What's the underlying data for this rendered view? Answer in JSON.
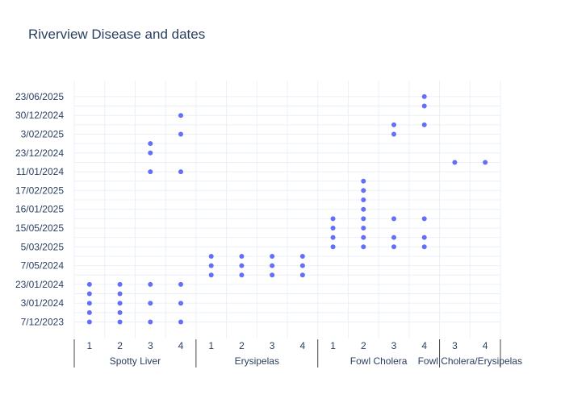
{
  "chart_data": {
    "type": "scatter",
    "title": "Riverview Disease and dates",
    "xlabel": "",
    "ylabel": "",
    "grid": true,
    "marker_color": "#636efa",
    "y_categories": [
      "7/12/2023",
      "3/01/2024",
      "23/01/2024",
      "7/05/2024",
      "5/03/2025",
      "15/05/2025",
      "16/01/2025",
      "17/02/2025",
      "11/01/2024",
      "23/12/2024",
      "3/02/2025",
      "30/12/2024",
      "23/06/2025"
    ],
    "groups": [
      {
        "name": "Spotty Liver",
        "subcategories": [
          "1",
          "2",
          "3",
          "4"
        ]
      },
      {
        "name": "Erysipelas",
        "subcategories": [
          "1",
          "2",
          "3",
          "4"
        ]
      },
      {
        "name": "Fowl Cholera",
        "subcategories": [
          "1",
          "2",
          "3",
          "4"
        ]
      },
      {
        "name": "Fowl Cholera/Erysipelas",
        "subcategories": [
          "3",
          "4"
        ]
      }
    ],
    "points": [
      {
        "group": "Spotty Liver",
        "sub": "1",
        "y": [
          0,
          0.5,
          1,
          1.5,
          2
        ]
      },
      {
        "group": "Spotty Liver",
        "sub": "2",
        "y": [
          0,
          0.5,
          1,
          1.5,
          2
        ]
      },
      {
        "group": "Spotty Liver",
        "sub": "3",
        "y": [
          0,
          1,
          2,
          8,
          9,
          9.5
        ]
      },
      {
        "group": "Spotty Liver",
        "sub": "4",
        "y": [
          0,
          1,
          2,
          8,
          10,
          11
        ]
      },
      {
        "group": "Erysipelas",
        "sub": "1",
        "y": [
          2.5,
          3,
          3.5
        ]
      },
      {
        "group": "Erysipelas",
        "sub": "2",
        "y": [
          2.5,
          3,
          3.5
        ]
      },
      {
        "group": "Erysipelas",
        "sub": "3",
        "y": [
          2.5,
          3,
          3.5
        ]
      },
      {
        "group": "Erysipelas",
        "sub": "4",
        "y": [
          2.5,
          3,
          3.5
        ]
      },
      {
        "group": "Fowl Cholera",
        "sub": "1",
        "y": [
          4,
          4.5,
          5,
          5.5
        ]
      },
      {
        "group": "Fowl Cholera",
        "sub": "2",
        "y": [
          4,
          4.5,
          5,
          5.5,
          6,
          6.5,
          7,
          7.5
        ]
      },
      {
        "group": "Fowl Cholera",
        "sub": "3",
        "y": [
          4,
          4.5,
          5.5,
          10,
          10.5
        ]
      },
      {
        "group": "Fowl Cholera",
        "sub": "4",
        "y": [
          4,
          4.5,
          5.5,
          10.5,
          11.5,
          12
        ]
      },
      {
        "group": "Fowl Cholera/Erysipelas",
        "sub": "3",
        "y": [
          8.5
        ]
      },
      {
        "group": "Fowl Cholera/Erysipelas",
        "sub": "4",
        "y": [
          8.5
        ]
      }
    ]
  }
}
